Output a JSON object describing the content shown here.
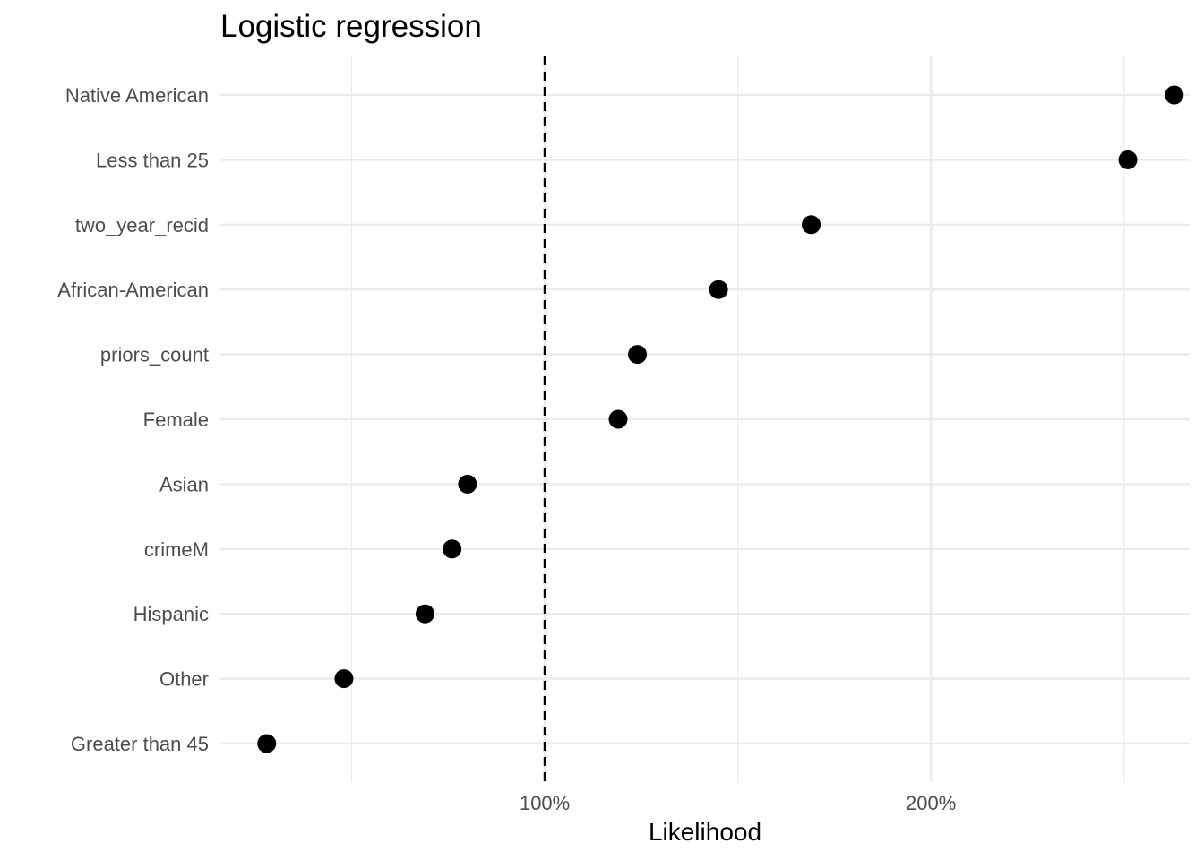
{
  "chart_data": {
    "type": "scatter",
    "title": "Logistic regression",
    "xlabel": "Likelihood",
    "ylabel": "",
    "xlim": [
      0.16,
      2.67
    ],
    "x_ticks": [
      1.0,
      2.0
    ],
    "x_tick_labels": [
      "100%",
      "200%"
    ],
    "x_minor_gridlines": [
      0.5,
      1.5,
      2.5
    ],
    "reference_line": {
      "x": 1.0,
      "style": "dashed"
    },
    "grid": true,
    "categories": [
      "Native American",
      "Less than 25",
      "two_year_recid",
      "African-American",
      "priors_count",
      "Female",
      "Asian",
      "crimeM",
      "Hispanic",
      "Other",
      "Greater than 45"
    ],
    "values": [
      2.63,
      2.51,
      1.69,
      1.45,
      1.24,
      1.19,
      0.8,
      0.76,
      0.69,
      0.48,
      0.28
    ],
    "point_color": "#000000"
  }
}
